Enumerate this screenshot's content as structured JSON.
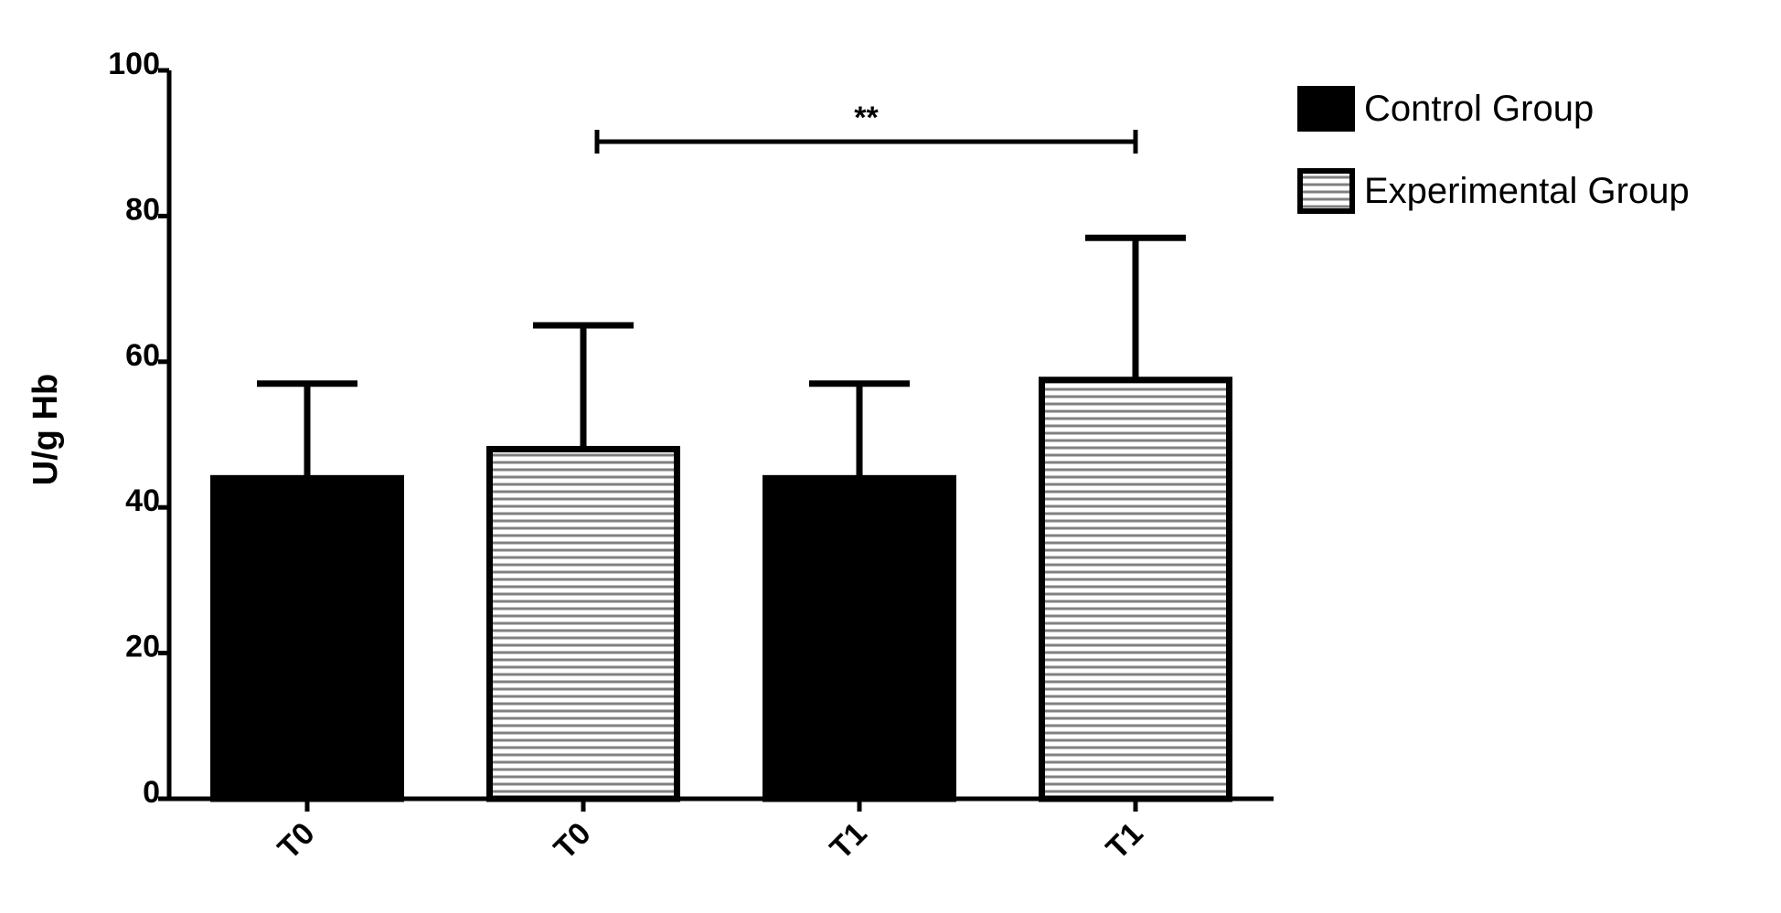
{
  "chart_data": {
    "type": "bar",
    "y_label": "U/g Hb",
    "categories": [
      "T0",
      "T0",
      "T1",
      "T1"
    ],
    "series": [
      {
        "name": "Control Group",
        "color": "#000000",
        "values": [
          44,
          null,
          44,
          null
        ],
        "errors": [
          13,
          null,
          13,
          null
        ]
      },
      {
        "name": "Experimental Group",
        "color": "#808080",
        "hatch": "horizontal",
        "values": [
          null,
          48,
          null,
          57.5
        ],
        "errors": [
          null,
          17,
          null,
          19.5
        ]
      }
    ],
    "ylim": [
      0,
      100
    ],
    "yticks": [
      0,
      20,
      40,
      60,
      80,
      100
    ],
    "annotation": "**",
    "legend": "upper right"
  }
}
